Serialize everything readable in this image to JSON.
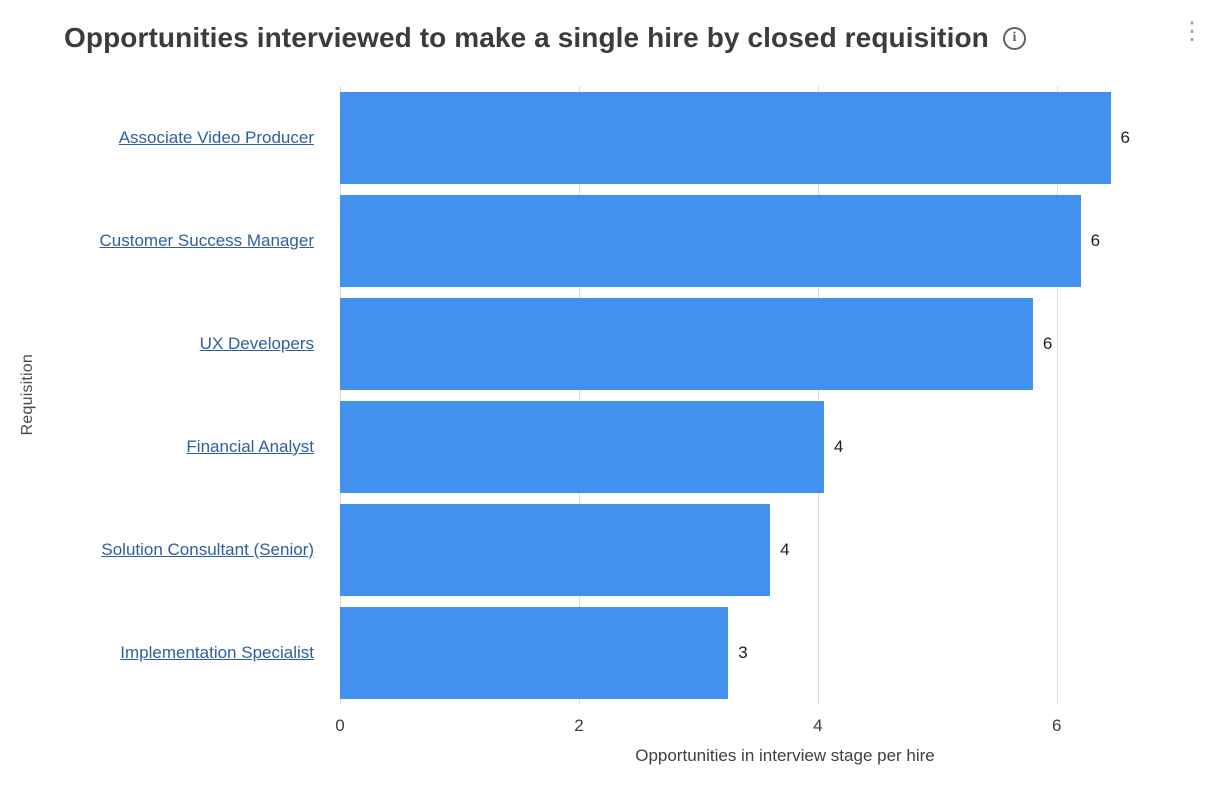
{
  "header": {
    "title": "Opportunities interviewed to make a single hire by closed requisition",
    "info_icon_glyph": "i",
    "kebab_glyph": "⋮"
  },
  "chart_data": {
    "type": "bar",
    "orientation": "horizontal",
    "title": "Opportunities interviewed to make a single hire by closed requisition",
    "categories": [
      "Associate Video Producer",
      "Customer Success Manager",
      "UX Developers",
      "Financial Analyst",
      "Solution Consultant (Senior)",
      "Implementation Specialist"
    ],
    "values": [
      6.45,
      6.2,
      5.8,
      4.05,
      3.6,
      3.25
    ],
    "value_labels": [
      "6",
      "6",
      "6",
      "4",
      "4",
      "3"
    ],
    "xlabel": "Opportunities in interview stage per hire",
    "ylabel": "Requisition",
    "x_ticks": [
      0,
      2,
      4,
      6
    ],
    "xlim": [
      0,
      7.45
    ],
    "grid": true,
    "legend": false,
    "bar_color": "#4291ee",
    "category_link_color": "#2e5f9e",
    "gridline_color": "#dadce0"
  }
}
